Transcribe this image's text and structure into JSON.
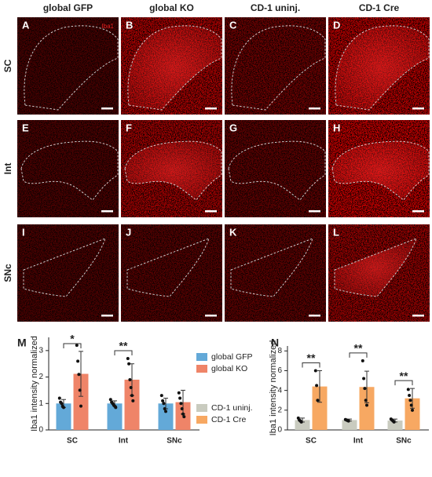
{
  "figure": {
    "column_headers": [
      "global GFP",
      "global KO",
      "CD-1 uninj.",
      "CD-1 Cre"
    ],
    "row_labels": [
      "SC",
      "Int",
      "SNc"
    ],
    "panel_letters": [
      "A",
      "B",
      "C",
      "D",
      "E",
      "F",
      "G",
      "H",
      "I",
      "J",
      "K",
      "L"
    ],
    "stain_label": "Iba1"
  },
  "chart_data": [
    {
      "type": "bar",
      "panel_letter": "M",
      "ylabel": "Iba1 intensity normalized",
      "categories": [
        "SC",
        "Int",
        "SNc"
      ],
      "ylim": [
        0,
        3.5
      ],
      "yticks": [
        0,
        1,
        2,
        3
      ],
      "annotations": [
        "*",
        "**",
        null
      ],
      "series": [
        {
          "name": "global GFP",
          "color": "#63a9d8",
          "values": [
            1.0,
            1.0,
            1.0
          ],
          "errors": [
            0.15,
            0.1,
            0.2
          ],
          "points": [
            [
              1.2,
              1.05,
              1.0,
              0.9,
              0.85
            ],
            [
              1.15,
              1.05,
              1.0,
              0.95,
              0.9,
              0.85
            ],
            [
              1.3,
              1.1,
              1.0,
              0.8,
              0.7
            ]
          ]
        },
        {
          "name": "global KO",
          "color": "#ef8468",
          "values": [
            2.12,
            1.9,
            1.05
          ],
          "errors": [
            0.85,
            0.6,
            0.45
          ],
          "points": [
            [
              3.2,
              2.6,
              2.1,
              1.5,
              0.9
            ],
            [
              2.7,
              2.5,
              1.9,
              1.6,
              1.3,
              1.1
            ],
            [
              1.4,
              1.2,
              1.0,
              0.8,
              0.6,
              0.5
            ]
          ]
        }
      ]
    },
    {
      "type": "bar",
      "panel_letter": "N",
      "ylabel": "Iba1 intensity normalized",
      "categories": [
        "SC",
        "Int",
        "SNc"
      ],
      "ylim": [
        0,
        8.5
      ],
      "yticks": [
        0,
        2,
        4,
        6,
        8
      ],
      "annotations": [
        "**",
        "**",
        "**"
      ],
      "series": [
        {
          "name": "CD-1 uninj.",
          "color": "#c9cbbf",
          "values": [
            1.0,
            1.0,
            0.95
          ],
          "errors": [
            0.2,
            0.1,
            0.15
          ],
          "points": [
            [
              1.2,
              1.0,
              0.9,
              0.8
            ],
            [
              1.05,
              1.0,
              0.95,
              0.9
            ],
            [
              1.1,
              1.0,
              0.9,
              0.8
            ]
          ]
        },
        {
          "name": "CD-1 Cre",
          "color": "#f7a862",
          "values": [
            4.4,
            4.35,
            3.2
          ],
          "errors": [
            1.6,
            1.6,
            1.0
          ],
          "points": [
            [
              6.0,
              4.5,
              3.0
            ],
            [
              7.0,
              5.2,
              4.2,
              3.0,
              2.5
            ],
            [
              4.1,
              3.5,
              3.0,
              2.5,
              2.0
            ]
          ]
        }
      ]
    }
  ]
}
